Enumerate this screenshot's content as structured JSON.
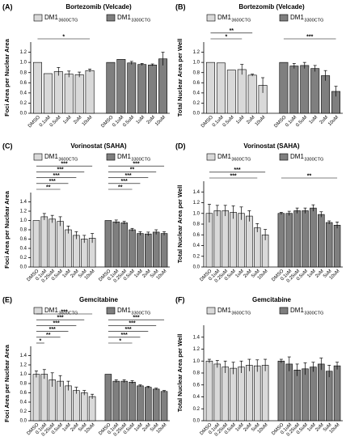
{
  "chart_data": [
    {
      "type": "bar",
      "panel": "(A)",
      "title": "Bortezomib (Velcade)",
      "ylabel": "Foci Area per  Nuclear Area",
      "categories": [
        "DMSO",
        "0.1uM",
        "0.5uM",
        "1uM",
        "2uM",
        "10uM"
      ],
      "series": [
        {
          "name": "DM1",
          "name_sub": "3600CTG",
          "color": "#d9d9d9",
          "values": [
            1.0,
            0.78,
            0.82,
            0.77,
            0.76,
            0.84
          ],
          "errors": [
            0,
            0,
            0.08,
            0.06,
            0.05,
            0.03
          ]
        },
        {
          "name": "DM1",
          "name_sub": "3300CTG",
          "color": "#7f7f7f",
          "values": [
            1.0,
            1.06,
            0.99,
            0.96,
            0.95,
            1.07
          ],
          "errors": [
            0,
            0,
            0.03,
            0.02,
            0.02,
            0.13
          ]
        }
      ],
      "ylim": [
        0,
        1.4
      ],
      "yticks": [
        {
          "value": 0,
          "label": "0.0"
        },
        0.2,
        0.4,
        0.6,
        0.8,
        {
          "value": 1,
          "label": "1.0"
        },
        1.2
      ],
      "significance": [
        {
          "series": 0,
          "from": 0,
          "to": 5,
          "label": "*"
        }
      ]
    },
    {
      "type": "bar",
      "panel": "(B)",
      "title": "Bortezomib (Velcade)",
      "ylabel": "Total Nuclear Area per Well",
      "categories": [
        "DMSO",
        "0.1uM",
        "0.5uM",
        "1uM",
        "2uM",
        "10uM"
      ],
      "series": [
        {
          "name": "DM1",
          "name_sub": "3600CTG",
          "color": "#d9d9d9",
          "values": [
            1.0,
            0.99,
            0.85,
            0.86,
            0.75,
            0.55
          ],
          "errors": [
            0,
            0,
            0,
            0.1,
            0.02,
            0.15
          ]
        },
        {
          "name": "DM1",
          "name_sub": "3300CTG",
          "color": "#7f7f7f",
          "values": [
            1.0,
            0.93,
            0.94,
            0.88,
            0.74,
            0.43
          ],
          "errors": [
            0,
            0.05,
            0.06,
            0.06,
            0.1,
            0.1
          ]
        }
      ],
      "ylim": [
        0,
        1.4
      ],
      "yticks": [
        {
          "value": 0,
          "label": "0.0"
        },
        0.2,
        0.4,
        0.6,
        0.8,
        {
          "value": 1,
          "label": "1.0"
        },
        1.2
      ],
      "significance": [
        {
          "series": 0,
          "from": 0,
          "to": 4,
          "label": "**"
        },
        {
          "series": 0,
          "from": 0,
          "to": 3,
          "label": "*"
        },
        {
          "series": 1,
          "from": 0,
          "to": 5,
          "label": "***"
        }
      ]
    },
    {
      "type": "bar",
      "panel": "(C)",
      "title": "Vorinostat (SAHA)",
      "ylabel": "Foci Area per  Nuclear Area",
      "categories": [
        "DMSO",
        "0.1uM",
        "0.25uM",
        "0.5uM",
        "1uM",
        "2uM",
        "5uM",
        "10uM"
      ],
      "series": [
        {
          "name": "DM1",
          "name_sub": "3600CTG",
          "color": "#d9d9d9",
          "values": [
            1.0,
            1.08,
            1.03,
            0.98,
            0.8,
            0.68,
            0.6,
            0.62
          ],
          "errors": [
            0,
            0.07,
            0.08,
            0.1,
            0.08,
            0.08,
            0.08,
            0.1
          ]
        },
        {
          "name": "DM1",
          "name_sub": "3300CTG",
          "color": "#7f7f7f",
          "values": [
            1.0,
            0.97,
            0.95,
            0.8,
            0.72,
            0.71,
            0.75,
            0.72
          ],
          "errors": [
            0,
            0.04,
            0.03,
            0.03,
            0.04,
            0.04,
            0.05,
            0.04
          ]
        }
      ],
      "ylim": [
        0,
        1.6
      ],
      "yticks": [
        {
          "value": 0,
          "label": "0.0"
        },
        0.2,
        0.4,
        0.6,
        0.8,
        {
          "value": 1,
          "label": "1.0"
        },
        1.2,
        1.4
      ],
      "significance": [
        {
          "series": 0,
          "from": 0,
          "to": 7,
          "label": "***"
        },
        {
          "series": 0,
          "from": 0,
          "to": 6,
          "label": "***"
        },
        {
          "series": 0,
          "from": 0,
          "to": 5,
          "label": "***"
        },
        {
          "series": 0,
          "from": 0,
          "to": 4,
          "label": "***"
        },
        {
          "series": 0,
          "from": 0,
          "to": 3,
          "label": "**"
        },
        {
          "series": 1,
          "from": 0,
          "to": 7,
          "label": "***"
        },
        {
          "series": 1,
          "from": 0,
          "to": 6,
          "label": "**"
        },
        {
          "series": 1,
          "from": 0,
          "to": 5,
          "label": "***"
        },
        {
          "series": 1,
          "from": 0,
          "to": 4,
          "label": "***"
        },
        {
          "series": 1,
          "from": 0,
          "to": 3,
          "label": "**"
        }
      ]
    },
    {
      "type": "bar",
      "panel": "(D)",
      "title": "Vorinostat (SAHA)",
      "ylabel": "Total Nuclear Area per Well",
      "categories": [
        "DMSO",
        "0.1uM",
        "0.25uM",
        "0.5uM",
        "1uM",
        "2uM",
        "5uM",
        "10uM"
      ],
      "series": [
        {
          "name": "DM1",
          "name_sub": "3600CTG",
          "color": "#d9d9d9",
          "values": [
            1.0,
            1.05,
            1.05,
            1.02,
            1.0,
            0.95,
            0.73,
            0.6
          ],
          "errors": [
            0.17,
            0.1,
            0.1,
            0.12,
            0.12,
            0.1,
            0.08,
            0.1
          ]
        },
        {
          "name": "DM1",
          "name_sub": "3300CTG",
          "color": "#7f7f7f",
          "values": [
            1.0,
            1.0,
            1.05,
            1.05,
            1.1,
            0.98,
            0.83,
            0.78
          ],
          "errors": [
            0.02,
            0.04,
            0.05,
            0.05,
            0.06,
            0.05,
            0.03,
            0.06
          ]
        }
      ],
      "ylim": [
        0,
        1.6
      ],
      "yticks": [
        {
          "value": 0,
          "label": "0.0"
        },
        0.2,
        0.4,
        0.6,
        0.8,
        {
          "value": 1,
          "label": "1.0"
        },
        1.2,
        1.4
      ],
      "significance": [
        {
          "series": 0,
          "from": 0,
          "to": 7,
          "label": "***"
        },
        {
          "series": 0,
          "from": 0,
          "to": 6,
          "label": "***"
        },
        {
          "series": 1,
          "from": 0,
          "to": 7,
          "label": "**"
        }
      ]
    },
    {
      "type": "bar",
      "panel": "(E)",
      "title": "Gemcitabine",
      "ylabel": "Foci Area per  Nuclear Area",
      "categories": [
        "DMSO",
        "0.1uM",
        "0.25uM",
        "0.5uM",
        "1uM",
        "2uM",
        "5uM",
        "10uM"
      ],
      "series": [
        {
          "name": "DM1",
          "name_sub": "3600CTG",
          "color": "#d9d9d9",
          "values": [
            1.0,
            1.0,
            0.88,
            0.85,
            0.75,
            0.65,
            0.6,
            0.52
          ],
          "errors": [
            0.07,
            0.1,
            0.15,
            0.12,
            0.1,
            0.07,
            0.05,
            0.05
          ]
        },
        {
          "name": "DM1",
          "name_sub": "3300CTG",
          "color": "#7f7f7f",
          "values": [
            1.0,
            0.85,
            0.85,
            0.83,
            0.75,
            0.72,
            0.68,
            0.63
          ],
          "errors": [
            0,
            0.03,
            0.03,
            0.03,
            0.02,
            0.02,
            0.02,
            0.02
          ]
        }
      ],
      "ylim": [
        0,
        1.6
      ],
      "yticks": [
        {
          "value": 0,
          "label": "0.0"
        },
        0.2,
        0.4,
        0.6,
        0.8,
        {
          "value": 1,
          "label": "1.0"
        },
        1.2,
        1.4
      ],
      "significance": [
        {
          "series": 0,
          "from": 0,
          "to": 7,
          "label": "***"
        },
        {
          "series": 0,
          "from": 0,
          "to": 6,
          "label": "***"
        },
        {
          "series": 0,
          "from": 0,
          "to": 5,
          "label": "***"
        },
        {
          "series": 0,
          "from": 0,
          "to": 4,
          "label": "***"
        },
        {
          "series": 0,
          "from": 0,
          "to": 3,
          "label": "**"
        },
        {
          "series": 0,
          "from": 0,
          "to": 1,
          "label": "*"
        },
        {
          "series": 1,
          "from": 0,
          "to": 7,
          "label": "***"
        },
        {
          "series": 1,
          "from": 0,
          "to": 6,
          "label": "***"
        },
        {
          "series": 1,
          "from": 0,
          "to": 5,
          "label": "***"
        },
        {
          "series": 1,
          "from": 0,
          "to": 4,
          "label": "***"
        },
        {
          "series": 1,
          "from": 0,
          "to": 3,
          "label": "*"
        }
      ]
    },
    {
      "type": "bar",
      "panel": "(F)",
      "title": "Gemcitabine",
      "ylabel": "Total Nuclear Area per Well",
      "categories": [
        "DMSO",
        "0.1uM",
        "0.25uM",
        "0.5uM",
        "1uM",
        "2uM",
        "5uM",
        "10uM"
      ],
      "series": [
        {
          "name": "DM1",
          "name_sub": "3600CTG",
          "color": "#d9d9d9",
          "values": [
            1.0,
            0.95,
            0.9,
            0.88,
            0.9,
            0.93,
            0.92,
            0.93
          ],
          "errors": [
            0.03,
            0.06,
            0.1,
            0.1,
            0.1,
            0.1,
            0.1,
            0.1
          ]
        },
        {
          "name": "DM1",
          "name_sub": "3300CTG",
          "color": "#7f7f7f",
          "values": [
            1.0,
            0.95,
            0.85,
            0.87,
            0.9,
            0.95,
            0.83,
            0.92
          ],
          "errors": [
            0.03,
            0.12,
            0.1,
            0.1,
            0.08,
            0.1,
            0.1,
            0.06
          ]
        }
      ],
      "ylim": [
        0,
        1.6
      ],
      "yticks": [
        {
          "value": 0,
          "label": "0.0"
        },
        0.2,
        0.4,
        0.6,
        0.8,
        {
          "value": 1,
          "label": "1.0"
        },
        1.2,
        1.4
      ],
      "significance": []
    }
  ]
}
